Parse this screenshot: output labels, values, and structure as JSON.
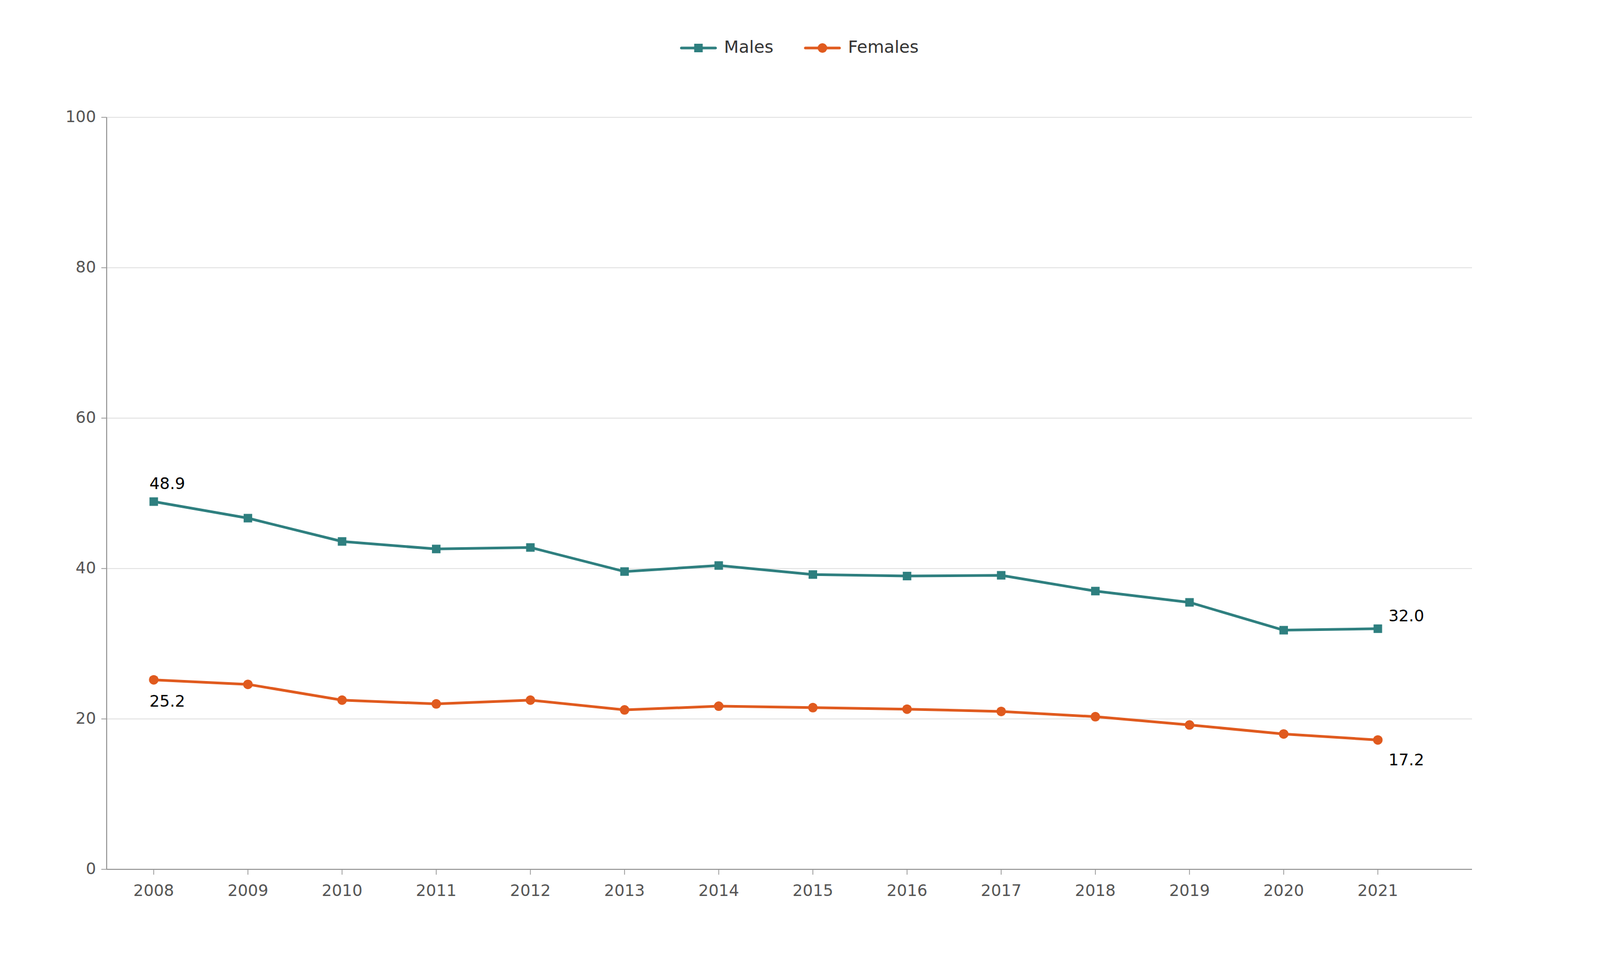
{
  "chart_data": {
    "type": "line",
    "x": [
      2008,
      2009,
      2010,
      2011,
      2012,
      2013,
      2014,
      2015,
      2016,
      2017,
      2018,
      2019,
      2020,
      2021
    ],
    "series": [
      {
        "name": "Males",
        "color": "#2e7f7f",
        "marker": "square",
        "values": [
          48.9,
          46.7,
          43.6,
          42.6,
          42.8,
          39.6,
          40.4,
          39.2,
          39.0,
          39.1,
          37.0,
          35.5,
          31.8,
          32.0
        ]
      },
      {
        "name": "Females",
        "color": "#e05a1e",
        "marker": "circle",
        "values": [
          25.2,
          24.6,
          22.5,
          22.0,
          22.5,
          21.2,
          21.7,
          21.5,
          21.3,
          21.0,
          20.3,
          19.2,
          18.0,
          17.2
        ]
      }
    ],
    "xlim": [
      2007.5,
      2022.0
    ],
    "xticks": [
      2008,
      2009,
      2010,
      2011,
      2012,
      2013,
      2014,
      2015,
      2016,
      2017,
      2018,
      2019,
      2020,
      2021
    ],
    "ylim": [
      0,
      100
    ],
    "yticks": [
      0,
      20,
      40,
      60,
      80,
      100
    ],
    "grid": true,
    "legend": "top",
    "annotations": [
      {
        "text": "48.9",
        "x": 2008,
        "y": 48.9
      },
      {
        "text": "32.0",
        "x": 2021,
        "y": 32.0
      },
      {
        "text": "25.2",
        "x": 2008,
        "y": 25.2
      },
      {
        "text": "17.2",
        "x": 2021,
        "y": 17.2
      }
    ]
  }
}
